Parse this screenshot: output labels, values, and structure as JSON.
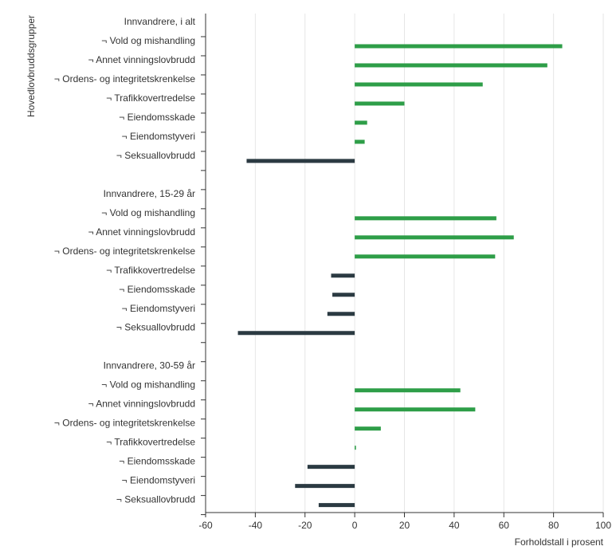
{
  "chart_data": {
    "type": "bar",
    "orientation": "horizontal",
    "ylabel": "Hovedlovbruddsgrupper",
    "xlabel": "Forholdstall i prosent",
    "xlim": [
      -60,
      100
    ],
    "xticks": [
      -60,
      -40,
      -20,
      0,
      20,
      40,
      60,
      80,
      100
    ],
    "grid": true,
    "legend": "none",
    "colors": {
      "positive": "#2e9e48",
      "negative": "#2b3a42"
    },
    "categories": [
      "Innvandrere, i alt",
      "¬ Vold og mishandling",
      "¬ Annet vinningslovbrudd",
      "¬ Ordens- og integritetskrenkelse",
      "¬ Trafikkovertredelse",
      "¬ Eiendomsskade",
      "¬ Eiendomstyveri",
      "¬ Seksuallovbrudd",
      "",
      "Innvandrere, 15-29 år",
      "¬ Vold og mishandling",
      "¬ Annet vinningslovbrudd",
      "¬ Ordens- og integritetskrenkelse",
      "¬ Trafikkovertredelse",
      "¬ Eiendomsskade",
      "¬ Eiendomstyveri",
      "¬ Seksuallovbrudd",
      "",
      "Innvandrere, 30-59 år",
      "¬ Vold og mishandling",
      "¬ Annet vinningslovbrudd",
      "¬ Ordens- og integritetskrenkelse",
      "¬ Trafikkovertredelse",
      "¬ Eiendomsskade",
      "¬ Eiendomstyveri",
      "¬ Seksuallovbrudd"
    ],
    "values": [
      null,
      83.5,
      77.5,
      51.5,
      20,
      5,
      4,
      -43.5,
      null,
      null,
      57,
      64,
      56.5,
      -9.5,
      -9,
      -11,
      -47,
      null,
      null,
      42.5,
      48.5,
      10.5,
      0.5,
      -19,
      -24,
      -14.5
    ]
  }
}
